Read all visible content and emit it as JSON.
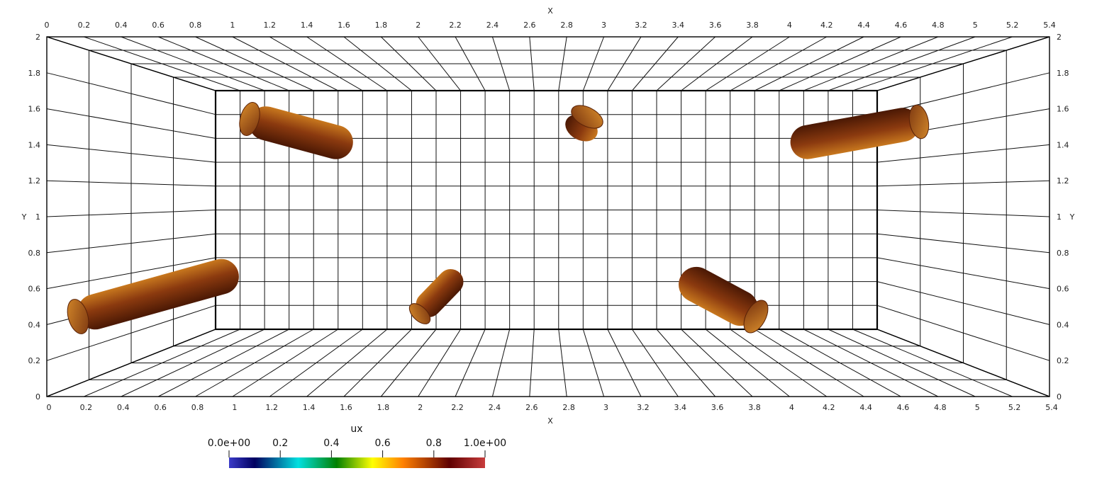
{
  "axes": {
    "x_title": "X",
    "y_title": "Y",
    "x_ticks": [
      "0",
      "0.2",
      "0.4",
      "0.6",
      "0.8",
      "1",
      "1.2",
      "1.4",
      "1.6",
      "1.8",
      "2",
      "2.2",
      "2.4",
      "2.6",
      "2.8",
      "3",
      "3.2",
      "3.4",
      "3.6",
      "3.8",
      "4",
      "4.2",
      "4.4",
      "4.6",
      "4.8",
      "5",
      "5.2",
      "5.4"
    ],
    "y_ticks": [
      "0",
      "0.2",
      "0.4",
      "0.6",
      "0.8",
      "1",
      "1.2",
      "1.4",
      "1.6",
      "1.8",
      "2"
    ]
  },
  "colorbar": {
    "title": "ux",
    "labels": [
      "0.0e+00",
      "0.2",
      "0.4",
      "0.6",
      "0.8",
      "1.0e+00"
    ],
    "stops": [
      "#3b3bc8",
      "#000060",
      "#00e0e0",
      "#008000",
      "#ffff00",
      "#ff8000",
      "#600000",
      "#c83c3c"
    ]
  },
  "fiber_colors": {
    "base": "#8b3a0f",
    "light": "#c8781e",
    "dark": "#4a1804"
  }
}
